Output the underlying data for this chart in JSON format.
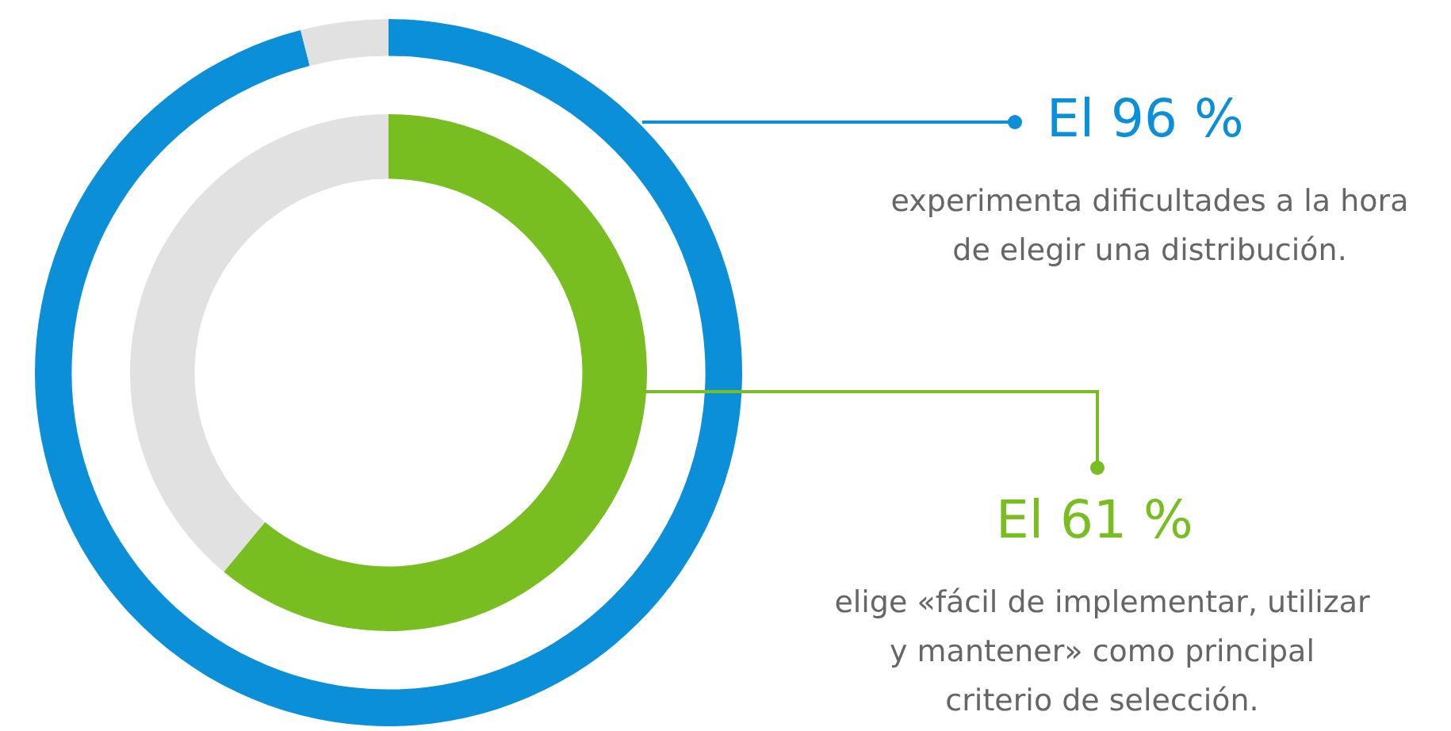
{
  "chart_data": [
    {
      "type": "donut",
      "categories": [
        null,
        null
      ],
      "values": [
        96,
        4
      ],
      "colors": [
        "#0a8fd8",
        "#e1e1e1"
      ],
      "annotations": [
        "El 96 %",
        "experimenta dificultades a la hora de elegir una distribución."
      ]
    },
    {
      "type": "donut",
      "categories": [
        null,
        null
      ],
      "values": [
        61,
        39
      ],
      "colors": [
        "#78be20",
        "#e1e1e1"
      ],
      "annotations": [
        "El 61 %",
        "elige «fácil de implementar, utilizar y mantener» como principal criterio de selección."
      ]
    }
  ]
}
